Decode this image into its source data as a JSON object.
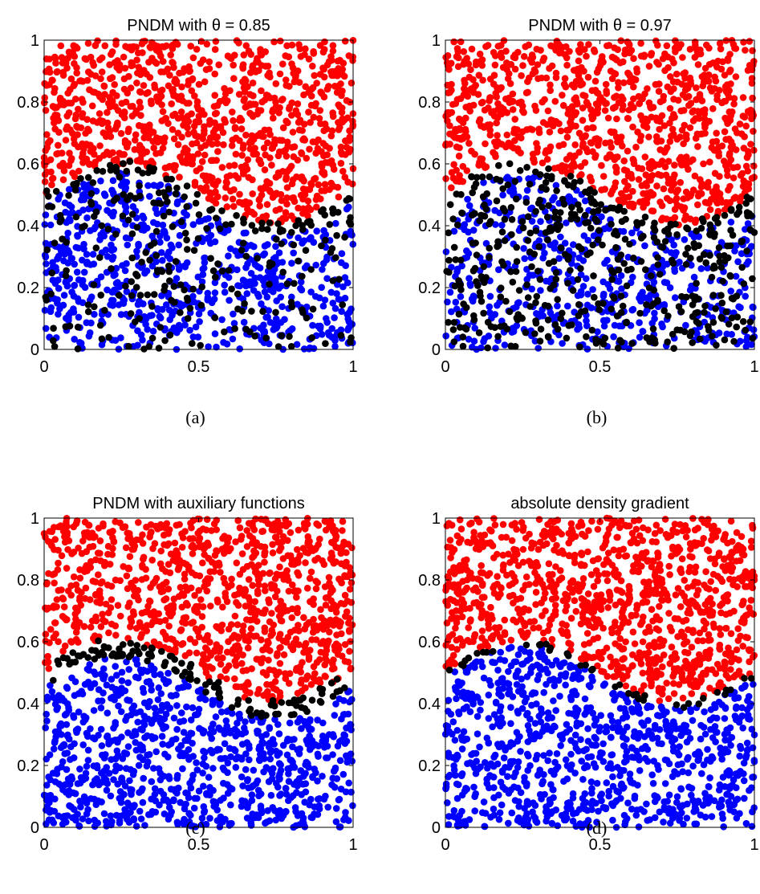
{
  "colors": {
    "upper_region": "#ff0000",
    "lower_region": "#0000ff",
    "detected": "#000000"
  },
  "chart_data": [
    {
      "type": "scatter",
      "title": "PNDM with θ = 0.85",
      "caption": "(a)",
      "xlim": [
        0,
        1
      ],
      "ylim": [
        0,
        1
      ],
      "xticks": [
        "0",
        "0.5",
        "1"
      ],
      "yticks": [
        "0",
        "0.2",
        "0.4",
        "0.6",
        "0.8",
        "1"
      ],
      "grid": false,
      "boundary": {
        "kind": "sinusoid",
        "center": 0.5,
        "amplitude": 0.1,
        "period": 1
      },
      "points": {
        "total": 2000,
        "detected_fraction_below": 0.22,
        "detected_band": 0.03
      }
    },
    {
      "type": "scatter",
      "title": "PNDM with θ = 0.97",
      "caption": "(b)",
      "xlim": [
        0,
        1
      ],
      "ylim": [
        0,
        1
      ],
      "xticks": [
        "0",
        "0.5",
        "1"
      ],
      "yticks": [
        "0",
        "0.2",
        "0.4",
        "0.6",
        "0.8",
        "1"
      ],
      "grid": false,
      "boundary": {
        "kind": "sinusoid",
        "center": 0.5,
        "amplitude": 0.1,
        "period": 1
      },
      "points": {
        "total": 2000,
        "detected_fraction_below": 0.4,
        "detected_band": 0.03
      }
    },
    {
      "type": "scatter",
      "title": "PNDM with auxiliary functions",
      "caption": "(c)",
      "xlim": [
        0,
        1
      ],
      "ylim": [
        0,
        1
      ],
      "xticks": [
        "0",
        "0.5",
        "1"
      ],
      "yticks": [
        "0",
        "0.2",
        "0.4",
        "0.6",
        "0.8",
        "1"
      ],
      "grid": false,
      "boundary": {
        "kind": "sinusoid",
        "center": 0.5,
        "amplitude": 0.1,
        "period": 1
      },
      "points": {
        "total": 2000,
        "detected_fraction_below": 0.0,
        "detected_band": 0.05
      }
    },
    {
      "type": "scatter",
      "title": "absolute density gradient",
      "caption": "(d)",
      "xlim": [
        0,
        1
      ],
      "ylim": [
        0,
        1
      ],
      "xticks": [
        "0",
        "0.5",
        "1"
      ],
      "yticks": [
        "0",
        "0.2",
        "0.4",
        "0.6",
        "0.8",
        "1"
      ],
      "grid": false,
      "boundary": {
        "kind": "sinusoid",
        "center": 0.5,
        "amplitude": 0.1,
        "period": 1
      },
      "points": {
        "total": 2000,
        "detected_fraction_below": 0.0,
        "detected_band": 0.015
      }
    }
  ]
}
